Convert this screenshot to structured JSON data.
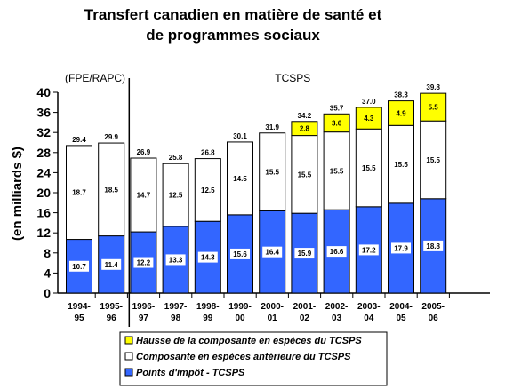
{
  "chart_data": {
    "type": "bar",
    "stacked": true,
    "title_lines": [
      "Transfert canadien en matière de santé et",
      "de programmes sociaux"
    ],
    "ylabel": "(en milliards $)",
    "xlabel": "",
    "ylim": [
      0,
      40
    ],
    "yticks": [
      "0",
      "4",
      "8",
      "12",
      "16",
      "20",
      "24",
      "28",
      "32",
      "36",
      "40"
    ],
    "grid": false,
    "legend_position": "bottom",
    "group_labels": [
      {
        "label": "(FPE/RAPC)",
        "first": 0,
        "last": 1
      },
      {
        "label": "TCSPS",
        "first": 2,
        "last": 11
      }
    ],
    "categories": [
      [
        "1994-",
        "95"
      ],
      [
        "1995-",
        "96"
      ],
      [
        "1996-",
        "97"
      ],
      [
        "1997-",
        "98"
      ],
      [
        "1998-",
        "99"
      ],
      [
        "1999-",
        "00"
      ],
      [
        "2000-",
        "01"
      ],
      [
        "2001-",
        "02"
      ],
      [
        "2002-",
        "03"
      ],
      [
        "2003-",
        "04"
      ],
      [
        "2004-",
        "05"
      ],
      [
        "2005-",
        "06"
      ]
    ],
    "totals": [
      "29.4",
      "29.9",
      "26.9",
      "25.8",
      "26.8",
      "30.1",
      "31.9",
      "34.2",
      "35.7",
      "37.0",
      "38.3",
      "39.8"
    ],
    "series": [
      {
        "name": "Points d'impôt - TCSPS",
        "color": "#3366ff",
        "values": [
          10.7,
          11.4,
          12.2,
          13.3,
          14.3,
          15.6,
          16.4,
          15.9,
          16.6,
          17.2,
          17.9,
          18.8
        ]
      },
      {
        "name": "Composante en espèces antérieure du TCSPS",
        "color": "#ffffff",
        "values": [
          18.7,
          18.5,
          14.7,
          12.5,
          12.5,
          14.5,
          15.5,
          15.5,
          15.5,
          15.5,
          15.5,
          15.5
        ]
      },
      {
        "name": "Hausse de la composante en espèces du TCSPS",
        "color": "#ffff00",
        "values": [
          null,
          null,
          null,
          null,
          null,
          null,
          null,
          2.8,
          3.6,
          4.3,
          4.9,
          5.5
        ]
      }
    ],
    "legend_order": [
      2,
      1,
      0
    ]
  }
}
